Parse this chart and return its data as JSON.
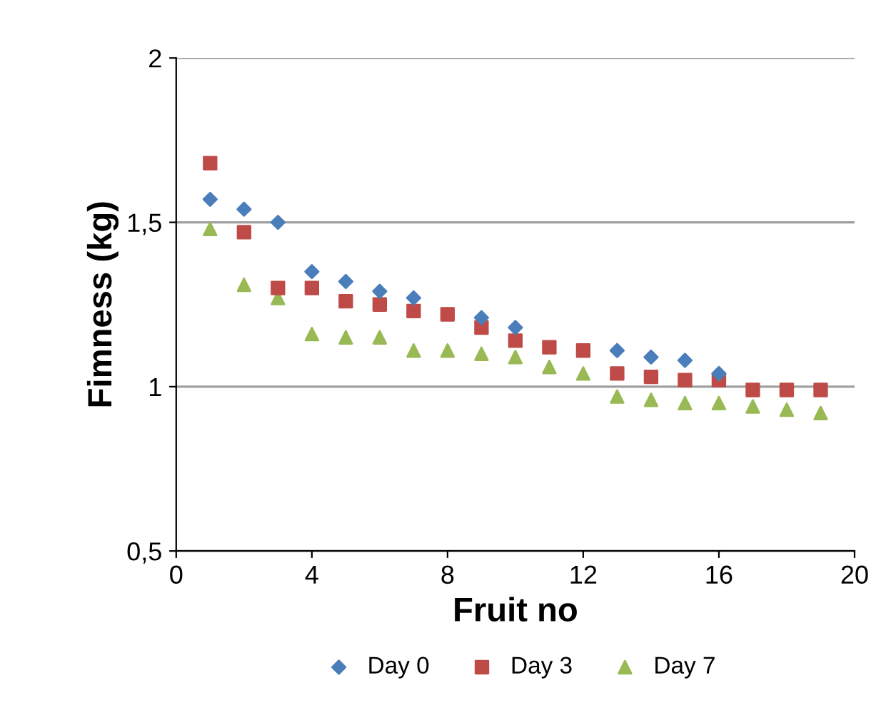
{
  "chart_data": {
    "type": "scatter",
    "xlabel": "Fruit no",
    "ylabel": "Fimness (kg)",
    "x": [
      1,
      2,
      3,
      4,
      5,
      6,
      7,
      8,
      9,
      10,
      11,
      12,
      13,
      14,
      15,
      16,
      17,
      18,
      19
    ],
    "series": [
      {
        "name": "Day 0",
        "color": "#4a7ebb",
        "marker": "diamond",
        "values": [
          1.57,
          1.54,
          1.5,
          1.35,
          1.32,
          1.29,
          1.27,
          null,
          1.21,
          1.18,
          null,
          null,
          1.11,
          1.09,
          1.08,
          1.04,
          null,
          null,
          null
        ]
      },
      {
        "name": "Day 3",
        "color": "#be4b48",
        "marker": "square",
        "values": [
          1.68,
          1.47,
          1.3,
          1.3,
          1.26,
          1.25,
          1.23,
          1.22,
          1.18,
          1.14,
          1.12,
          1.11,
          1.04,
          1.03,
          1.02,
          1.02,
          0.99,
          0.99,
          0.99
        ]
      },
      {
        "name": "Day 7",
        "color": "#98b954",
        "marker": "triangle",
        "values": [
          1.48,
          1.31,
          1.27,
          1.16,
          1.15,
          1.15,
          1.11,
          1.11,
          1.1,
          1.09,
          1.06,
          1.04,
          0.97,
          0.96,
          0.95,
          0.95,
          0.94,
          0.93,
          0.92
        ]
      }
    ],
    "xlim": [
      0,
      20
    ],
    "xticks": [
      0,
      4,
      8,
      12,
      16,
      20
    ],
    "ylim": [
      0.5,
      2
    ],
    "yticks": [
      {
        "value": 0.5,
        "label": "0,5"
      },
      1,
      {
        "value": 1.5,
        "label": "1,5"
      },
      2
    ],
    "grid": "y",
    "legend": "bottom"
  }
}
